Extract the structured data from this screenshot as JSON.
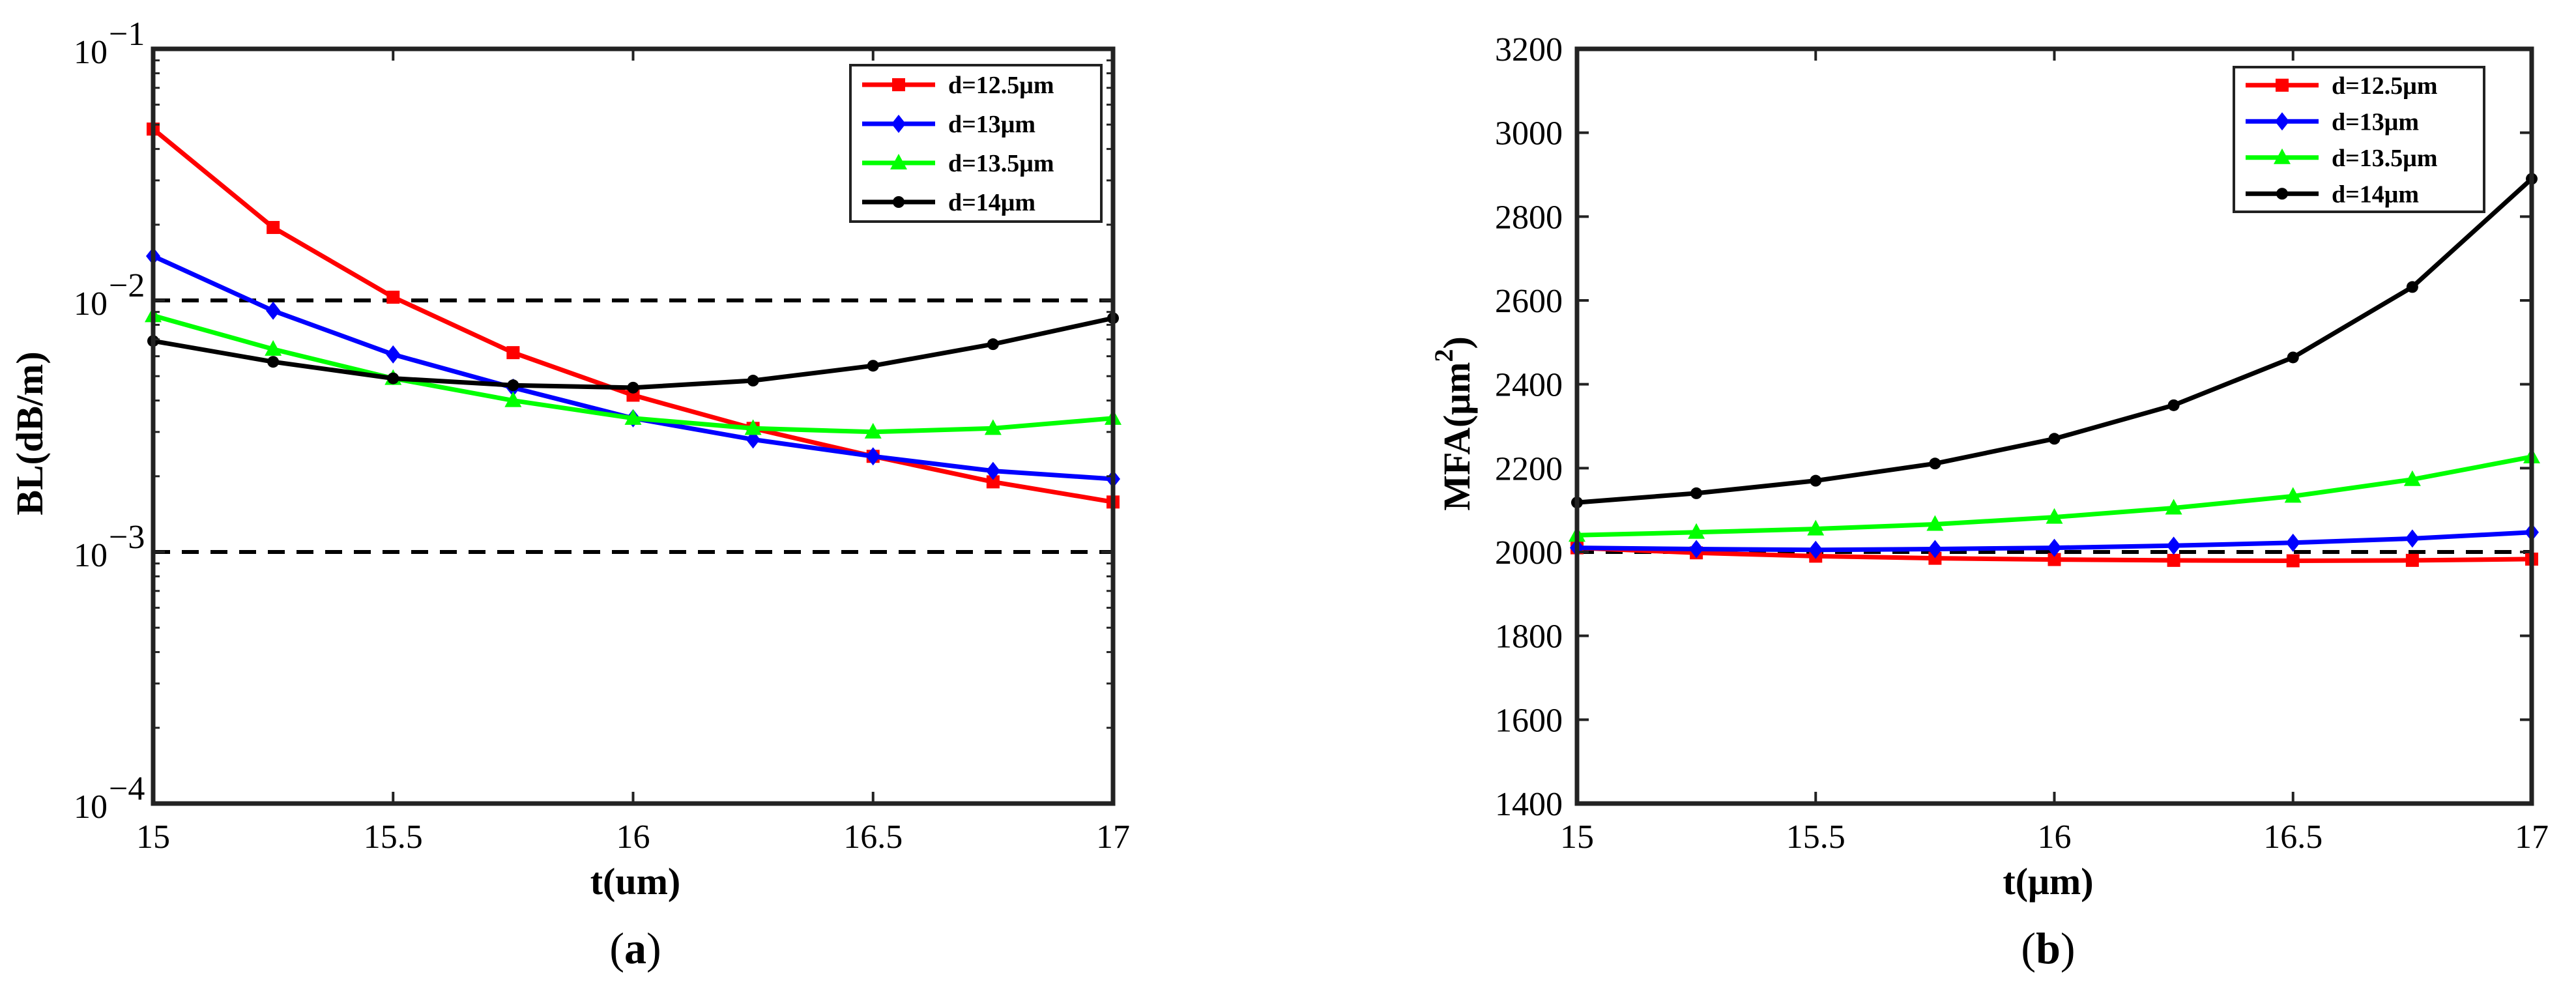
{
  "chart_data": [
    {
      "type": "line",
      "panel_label": "a",
      "ylabel": "BL(dB/m)",
      "xlabel": "t(um)",
      "yscale": "log",
      "xlim": [
        15,
        17
      ],
      "ylim": [
        0.0001,
        0.1
      ],
      "x": [
        15,
        15.25,
        15.5,
        15.75,
        16,
        16.25,
        16.5,
        16.75,
        17
      ],
      "xticks": [
        15,
        15.5,
        16,
        16.5,
        17
      ],
      "xtick_labels": [
        "15",
        "15.5",
        "16",
        "16.5",
        "17"
      ],
      "yticks": [
        0.1,
        0.01,
        0.001,
        0.0001
      ],
      "ytick_base": [
        "10",
        "10",
        "10",
        "10"
      ],
      "ytick_exp": [
        "−1",
        "−2",
        "−3",
        "−4"
      ],
      "reference_lines": [
        0.01,
        0.001
      ],
      "legend_position": "top-right",
      "series": [
        {
          "name": "d=12.5μm",
          "color": "#ff0000",
          "marker": "square",
          "values": [
            0.048,
            0.0195,
            0.0103,
            0.0062,
            0.0042,
            0.0031,
            0.0024,
            0.0019,
            0.00158
          ]
        },
        {
          "name": "d=13μm",
          "color": "#0000ff",
          "marker": "diamond",
          "values": [
            0.015,
            0.0091,
            0.0061,
            0.0045,
            0.0034,
            0.0028,
            0.0024,
            0.0021,
            0.00195
          ]
        },
        {
          "name": "d=13.5μm",
          "color": "#00ff00",
          "marker": "triangle",
          "values": [
            0.0087,
            0.0064,
            0.0049,
            0.004,
            0.0034,
            0.0031,
            0.003,
            0.0031,
            0.0034
          ]
        },
        {
          "name": "d=14μm",
          "color": "#000000",
          "marker": "circle",
          "values": [
            0.0069,
            0.0057,
            0.0049,
            0.0046,
            0.0045,
            0.0048,
            0.0055,
            0.0067,
            0.0085
          ]
        }
      ]
    },
    {
      "type": "line",
      "panel_label": "b",
      "ylabel": "MFA(μm",
      "ylabel_sup": "2",
      "ylabel_close": ")",
      "xlabel": "t(μm)",
      "yscale": "linear",
      "xlim": [
        15,
        17
      ],
      "ylim": [
        1400,
        3200
      ],
      "x": [
        15,
        15.25,
        15.5,
        15.75,
        16,
        16.25,
        16.5,
        16.75,
        17
      ],
      "xticks": [
        15,
        15.5,
        16,
        16.5,
        17
      ],
      "xtick_labels": [
        "15",
        "15.5",
        "16",
        "16.5",
        "17"
      ],
      "yticks": [
        1400,
        1600,
        1800,
        2000,
        2200,
        2400,
        2600,
        2800,
        3000,
        3200
      ],
      "ytick_labels": [
        "1400",
        "1600",
        "1800",
        "2000",
        "2200",
        "2400",
        "2600",
        "2800",
        "3000",
        "3200"
      ],
      "reference_lines": [
        2000
      ],
      "legend_position": "top-left",
      "series": [
        {
          "name": "d=12.5μm",
          "color": "#ff0000",
          "marker": "square",
          "values": [
            2010,
            1998,
            1990,
            1985,
            1982,
            1980,
            1979,
            1980,
            1983
          ]
        },
        {
          "name": "d=13μm",
          "color": "#0000ff",
          "marker": "diamond",
          "values": [
            2010,
            2007,
            2005,
            2007,
            2010,
            2015,
            2022,
            2032,
            2047
          ]
        },
        {
          "name": "d=13.5μm",
          "color": "#00ff00",
          "marker": "triangle",
          "values": [
            2040,
            2047,
            2055,
            2066,
            2083,
            2105,
            2133,
            2173,
            2227
          ]
        },
        {
          "name": "d=14μm",
          "color": "#000000",
          "marker": "circle",
          "values": [
            2118,
            2140,
            2170,
            2211,
            2270,
            2350,
            2464,
            2632,
            2890
          ]
        }
      ]
    }
  ]
}
